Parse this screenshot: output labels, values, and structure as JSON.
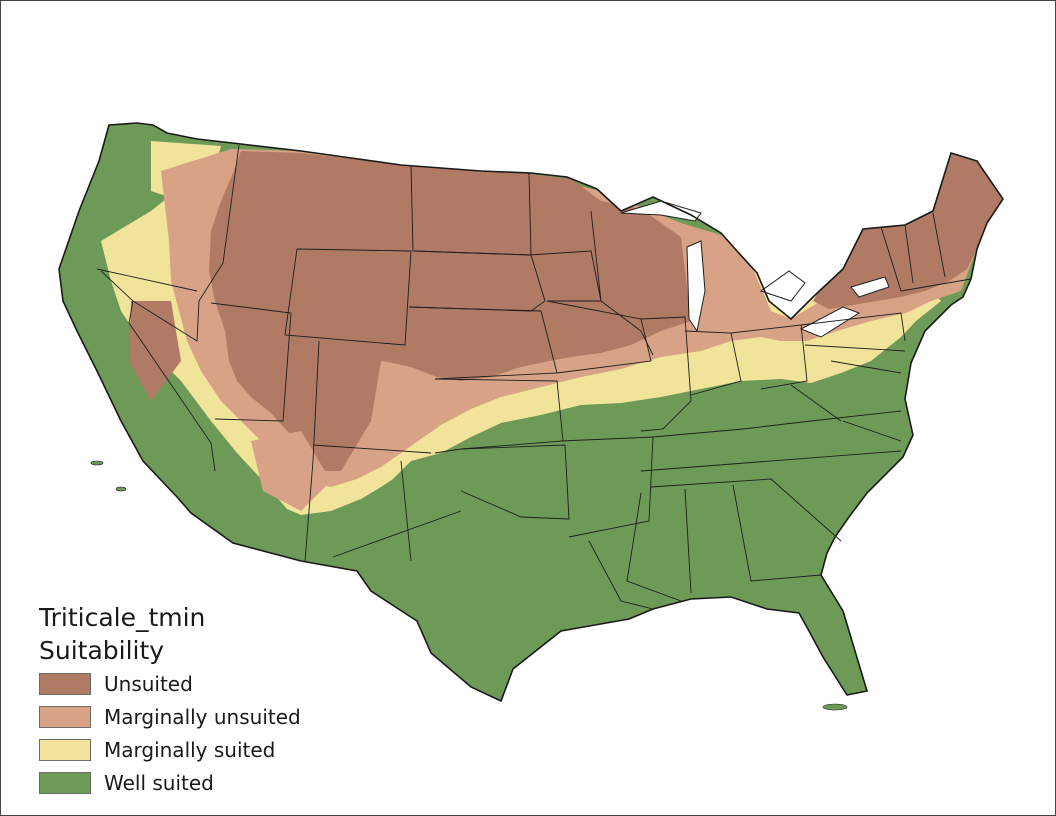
{
  "legend": {
    "title_line1": "Triticale_tmin",
    "title_line2": "Suitability",
    "items": [
      {
        "label": "Unsuited",
        "color": "#b07a65"
      },
      {
        "label": "Marginally unsuited",
        "color": "#d7a285"
      },
      {
        "label": "Marginally suited",
        "color": "#f2e39a"
      },
      {
        "label": "Well suited",
        "color": "#6d9a57"
      }
    ]
  },
  "colors": {
    "unsuited": "#b07a65",
    "marginally_unsuited": "#d7a285",
    "marginally_suited": "#f2e39a",
    "well_suited": "#6d9a57",
    "border": "#1f1f1f",
    "lakes": "#ffffff"
  }
}
